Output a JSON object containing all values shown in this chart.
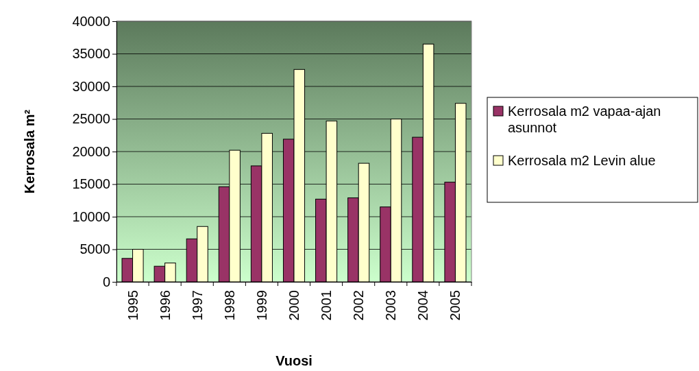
{
  "chart_data": {
    "type": "bar",
    "xlabel": "Vuosi",
    "ylabel": "Kerrosala m²",
    "categories": [
      "1995",
      "1996",
      "1997",
      "1998",
      "1999",
      "2000",
      "2001",
      "2002",
      "2003",
      "2004",
      "2005"
    ],
    "series": [
      {
        "name": "Kerrosala m2 vapaa-ajan asunnot",
        "color": "#993366",
        "values": [
          3600,
          2400,
          6600,
          14600,
          17800,
          21900,
          12700,
          12900,
          11500,
          22200,
          15300
        ]
      },
      {
        "name": "Kerrosala m2 Levin alue",
        "color": "#ffffcc",
        "values": [
          5000,
          2900,
          8500,
          20200,
          22800,
          32600,
          24700,
          18200,
          25000,
          36500,
          27400
        ]
      }
    ],
    "ylim": [
      0,
      40000
    ],
    "yticks": [
      0,
      5000,
      10000,
      15000,
      20000,
      25000,
      30000,
      35000,
      40000
    ],
    "grid": "y",
    "legend": "right"
  }
}
